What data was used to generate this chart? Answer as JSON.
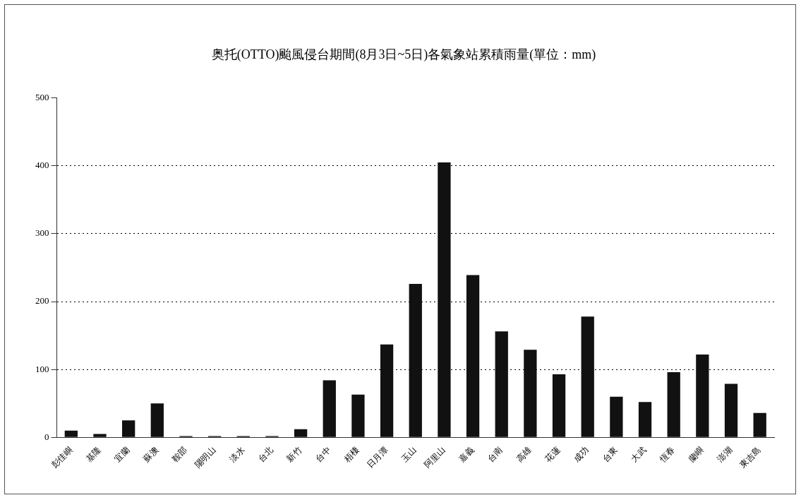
{
  "chart_data": {
    "type": "bar",
    "title": "奥托(OTTO)颱風侵台期間(8月3日~5日)各氣象站累積雨量(單位：mm)",
    "categories": [
      "彭佳嶼",
      "基隆",
      "宜蘭",
      "蘇澳",
      "鞍部",
      "陽明山",
      "淡水",
      "台北",
      "新竹",
      "台中",
      "梧棲",
      "日月潭",
      "玉山",
      "阿里山",
      "嘉義",
      "台南",
      "高雄",
      "花蓮",
      "成功",
      "台東",
      "大武",
      "恆春",
      "蘭嶼",
      "澎湖",
      "東吉島"
    ],
    "values": [
      10,
      5,
      25,
      50,
      2,
      2,
      2,
      2,
      12,
      84,
      63,
      137,
      226,
      405,
      239,
      156,
      129,
      93,
      178,
      60,
      52,
      96,
      122,
      79,
      36
    ],
    "color": "#111111",
    "ylim": [
      0,
      500
    ],
    "yticks": [
      0,
      100,
      200,
      300,
      400,
      500
    ],
    "grid": "y",
    "line_style": "dotted"
  }
}
